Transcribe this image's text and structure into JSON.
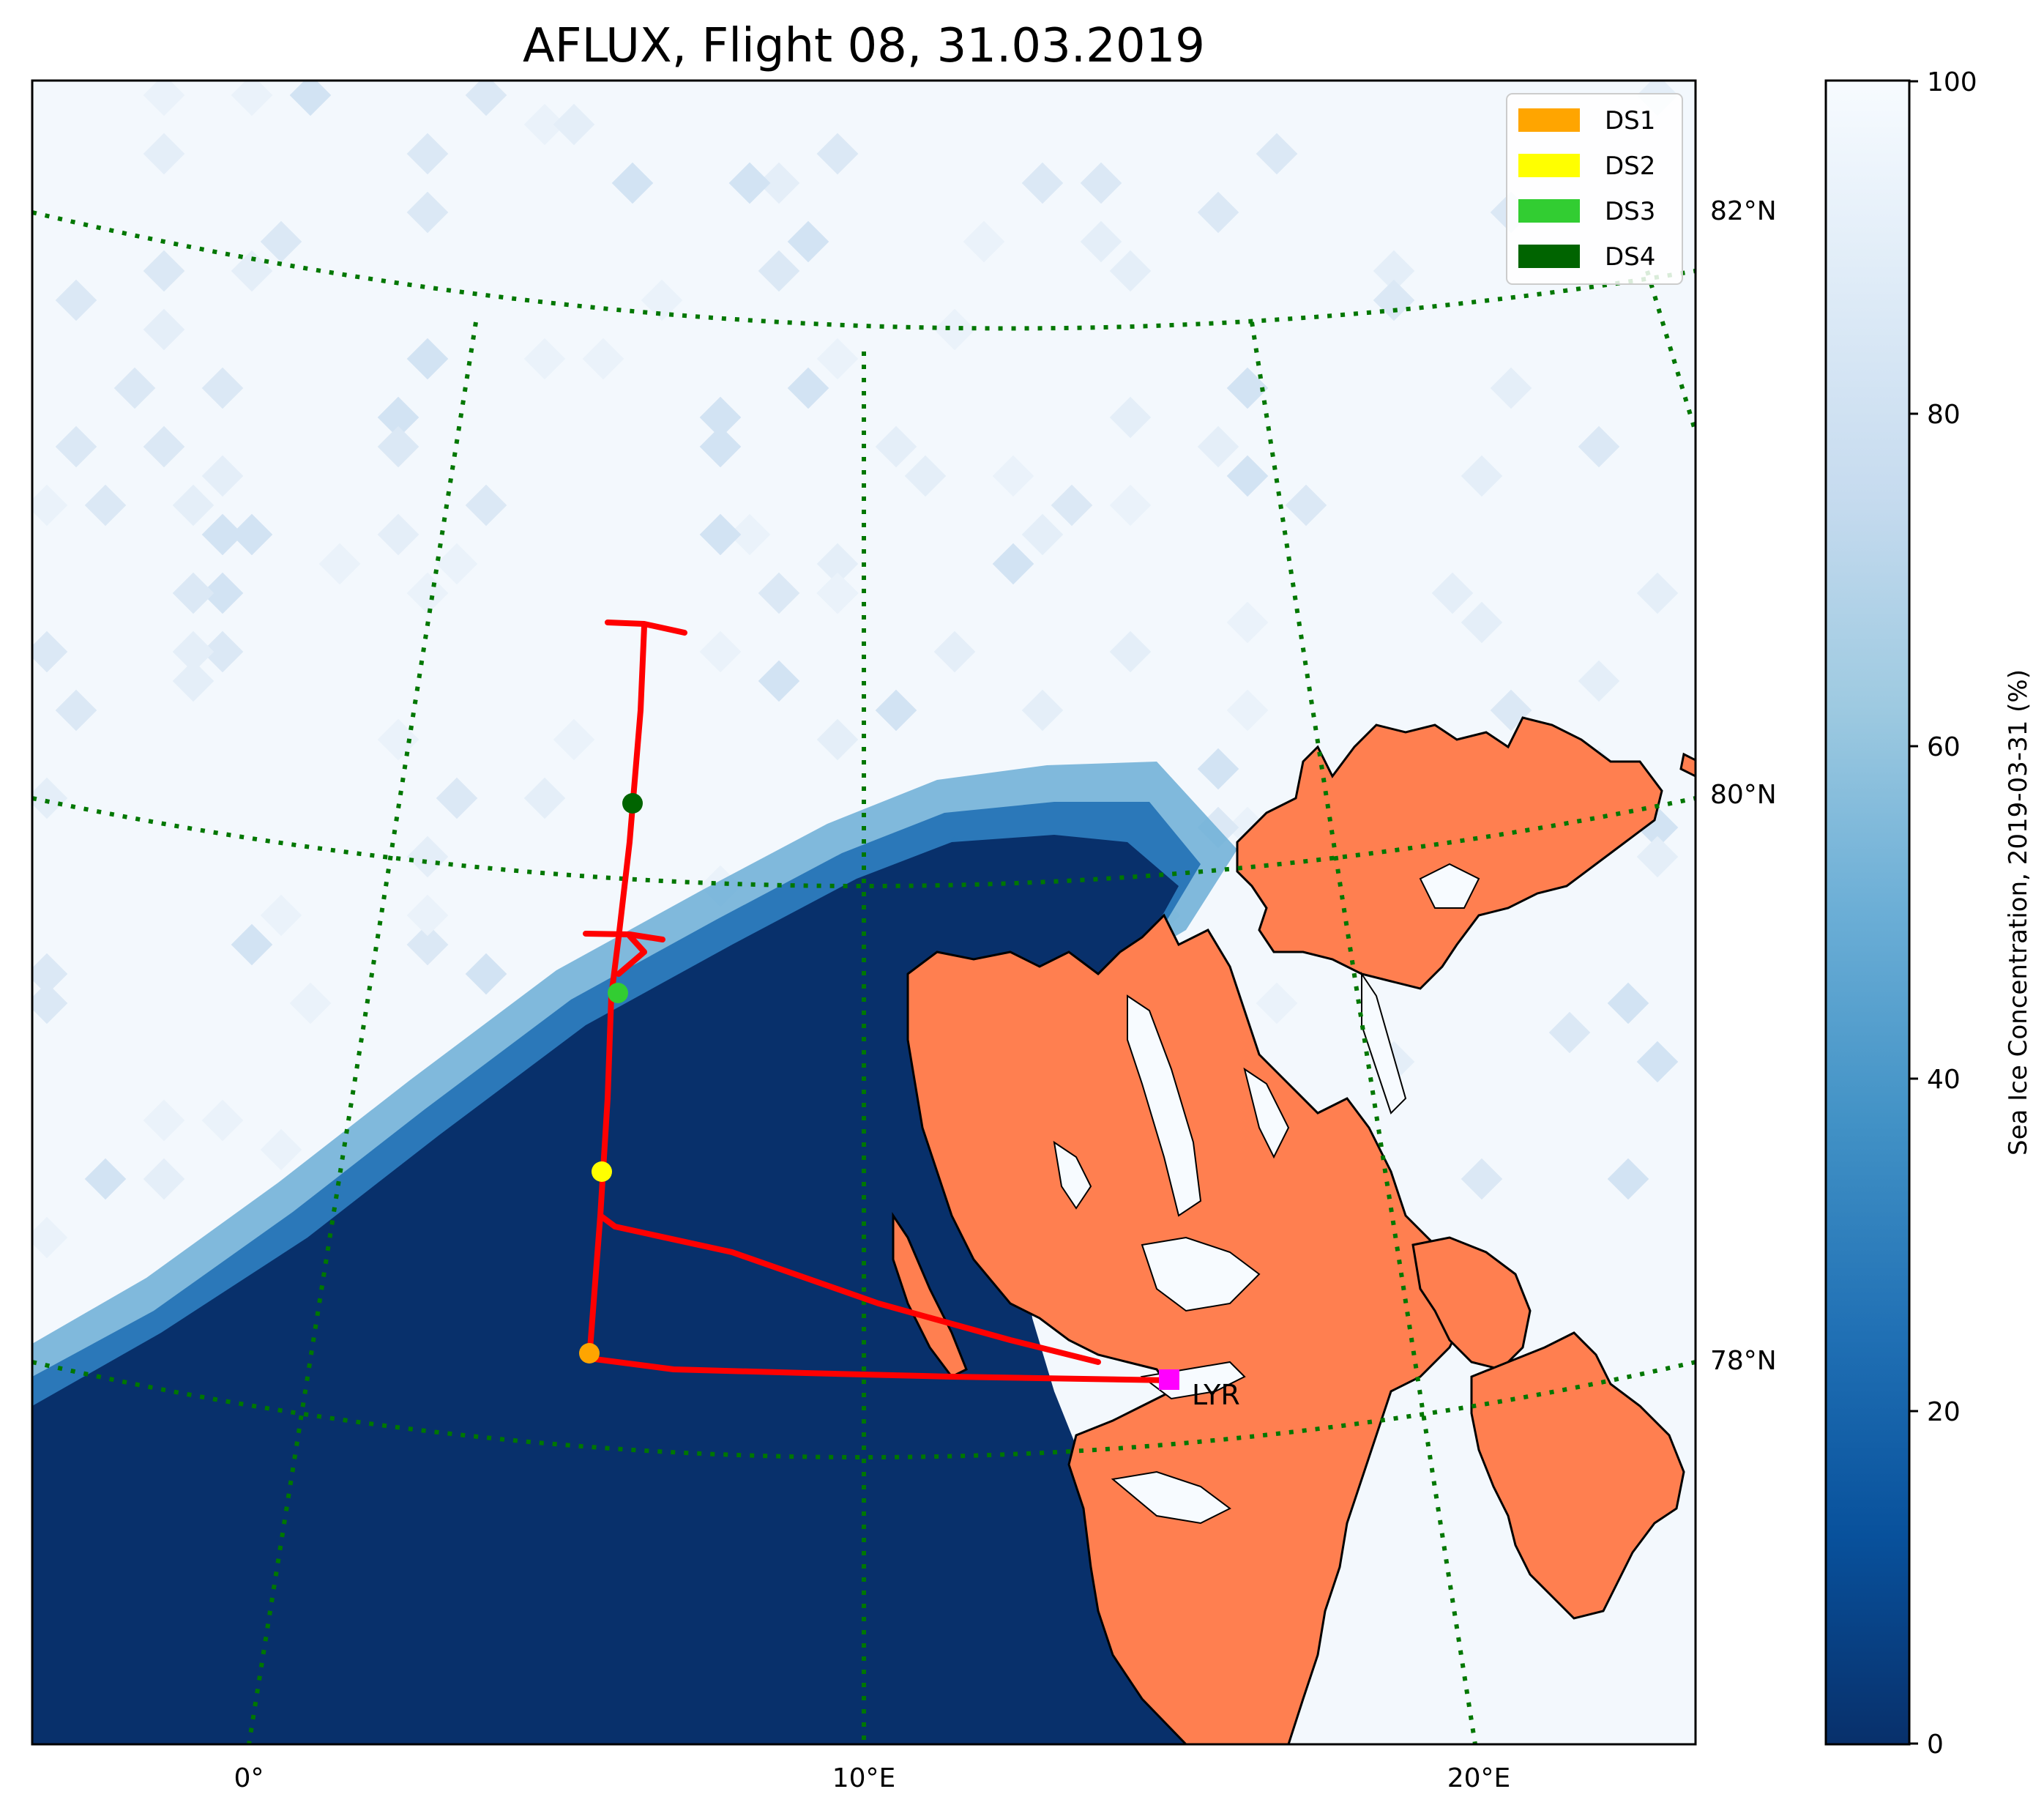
{
  "title": "AFLUX, Flight 08, 31.03.2019",
  "map": {
    "longitude_labels": [
      "0°",
      "10°E",
      "20°E"
    ],
    "latitude_labels": [
      "82°N",
      "80°N",
      "78°N"
    ],
    "graticule_color": "#007700",
    "land_color": "#ff7f50",
    "open_water_color": "#08306b",
    "ice_color": "#f7fbff",
    "track_color": "#ff0000",
    "airport": {
      "label": "LYR",
      "color": "#ff00ff",
      "marker": "square"
    }
  },
  "legend": {
    "placement": "top-right",
    "items": [
      {
        "label": "DS1",
        "color": "#ffa500"
      },
      {
        "label": "DS2",
        "color": "#ffff00"
      },
      {
        "label": "DS3",
        "color": "#32cd32"
      },
      {
        "label": "DS4",
        "color": "#006400"
      }
    ]
  },
  "colorbar": {
    "label": "Sea Ice Concentration, 2019-03-31 (%)",
    "ticks": [
      "0",
      "20",
      "40",
      "60",
      "80",
      "100"
    ],
    "range": [
      0,
      100
    ],
    "colormap": "Blues_r"
  },
  "chart_data": {
    "type": "map",
    "dropsondes": [
      {
        "name": "DS1",
        "color": "#ffa500"
      },
      {
        "name": "DS2",
        "color": "#ffff00"
      },
      {
        "name": "DS3",
        "color": "#32cd32"
      },
      {
        "name": "DS4",
        "color": "#006400"
      }
    ]
  }
}
